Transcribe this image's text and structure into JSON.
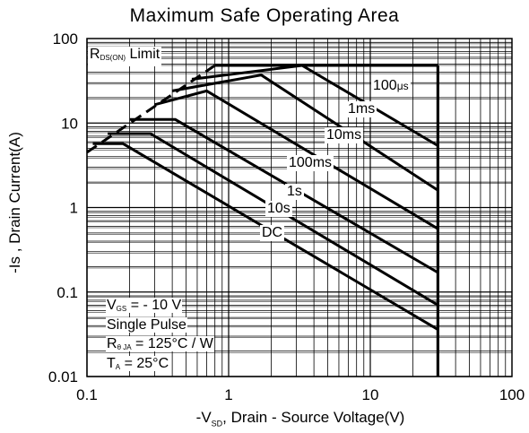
{
  "chart_data": {
    "type": "line",
    "title": "Maximum Safe Operating Area",
    "xlabel": "-VSD , Drain - Source Voltage(V)",
    "ylabel": "-Is , Drain Current(A)",
    "x_scale": "log",
    "y_scale": "log",
    "xlim": [
      0.1,
      100
    ],
    "ylim": [
      0.01,
      100
    ],
    "x_ticks": [
      "0.1",
      "1",
      "10",
      "100"
    ],
    "y_ticks": [
      "0.01",
      "0.1",
      "1",
      "10",
      "100"
    ],
    "grid": true,
    "rds_limit": {
      "label": "RDS(ON) Limit",
      "label_main": "R",
      "label_sub": "DS(ON)",
      "label_tail": "Limit",
      "x": [
        0.1,
        0.8
      ],
      "y": [
        4.5,
        48
      ]
    },
    "max_voltage": 30,
    "series": [
      {
        "name": "100μs",
        "label_main": "100",
        "label_tail": "μs",
        "x": [
          0.8,
          10,
          30
        ],
        "y": [
          48,
          48,
          48
        ]
      },
      {
        "name": "1ms",
        "x": [
          0.55,
          3.3,
          30
        ],
        "y": [
          33,
          48,
          5.4
        ]
      },
      {
        "name": "10ms",
        "x": [
          0.4,
          1.7,
          30
        ],
        "y": [
          24,
          37,
          1.6
        ]
      },
      {
        "name": "100ms",
        "x": [
          0.3,
          0.7,
          30
        ],
        "y": [
          16.5,
          24,
          0.56
        ]
      },
      {
        "name": "1s",
        "x": [
          0.2,
          0.42,
          30
        ],
        "y": [
          11,
          11,
          0.17
        ]
      },
      {
        "name": "10s",
        "x": [
          0.14,
          0.28,
          30
        ],
        "y": [
          7.5,
          7.5,
          0.07
        ]
      },
      {
        "name": "DC",
        "x": [
          0.11,
          0.18,
          30
        ],
        "y": [
          5.7,
          5.7,
          0.036
        ]
      }
    ],
    "conditions": {
      "vgs_main": "V",
      "vgs_sub": "GS",
      "vgs_tail": "= - 10 V",
      "pulse": "Single Pulse",
      "rth_main": "R",
      "rth_sub": "θ JA",
      "rth_tail": "= 125°C / W",
      "ta_main": "T",
      "ta_sub": "A",
      "ta_tail": "= 25°C"
    },
    "xlabel_prefix": "-V",
    "xlabel_sub": "SD",
    "xlabel_tail": ", Drain - Source Voltage(V)"
  }
}
